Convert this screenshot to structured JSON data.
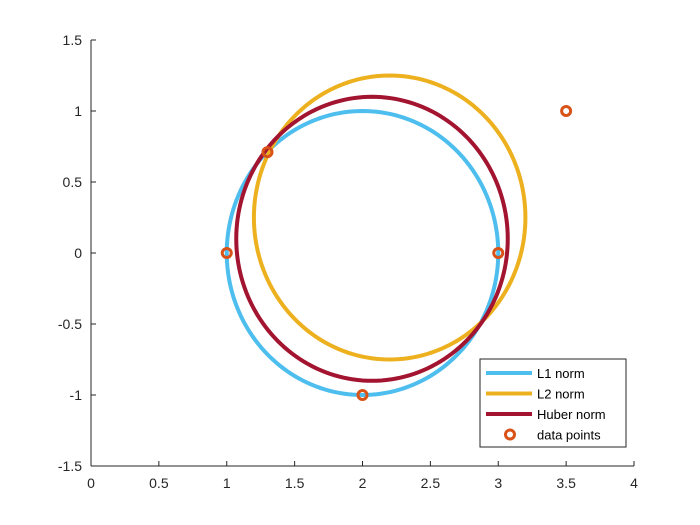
{
  "chart_data": {
    "type": "line",
    "title": "",
    "xlabel": "",
    "ylabel": "",
    "xlim": [
      0,
      4
    ],
    "ylim": [
      -1.5,
      1.5
    ],
    "xticks": [
      "0",
      "0.5",
      "1",
      "1.5",
      "2",
      "2.5",
      "3",
      "3.5",
      "4"
    ],
    "yticks": [
      "1.5",
      "1",
      "0.5",
      "0",
      "-0.5",
      "-1",
      "-1.5"
    ],
    "grid": false,
    "legend_position": "bottom-right",
    "series": [
      {
        "name": "L1 norm",
        "kind": "circle",
        "center": [
          2.0,
          0.0
        ],
        "radius": 1.0,
        "color": "#4DBEEE"
      },
      {
        "name": "L2 norm",
        "kind": "circle",
        "center": [
          2.2,
          0.25
        ],
        "radius": 1.0,
        "color": "#EDB120"
      },
      {
        "name": "Huber norm",
        "kind": "circle",
        "center": [
          2.07,
          0.1
        ],
        "radius": 1.0,
        "color": "#A2142F"
      },
      {
        "name": "data points",
        "kind": "scatter",
        "color": "#D95319",
        "x": [
          1.0,
          1.3,
          2.0,
          3.0,
          3.5
        ],
        "y": [
          0.0,
          0.71,
          -1.0,
          0.0,
          1.0
        ]
      }
    ]
  }
}
